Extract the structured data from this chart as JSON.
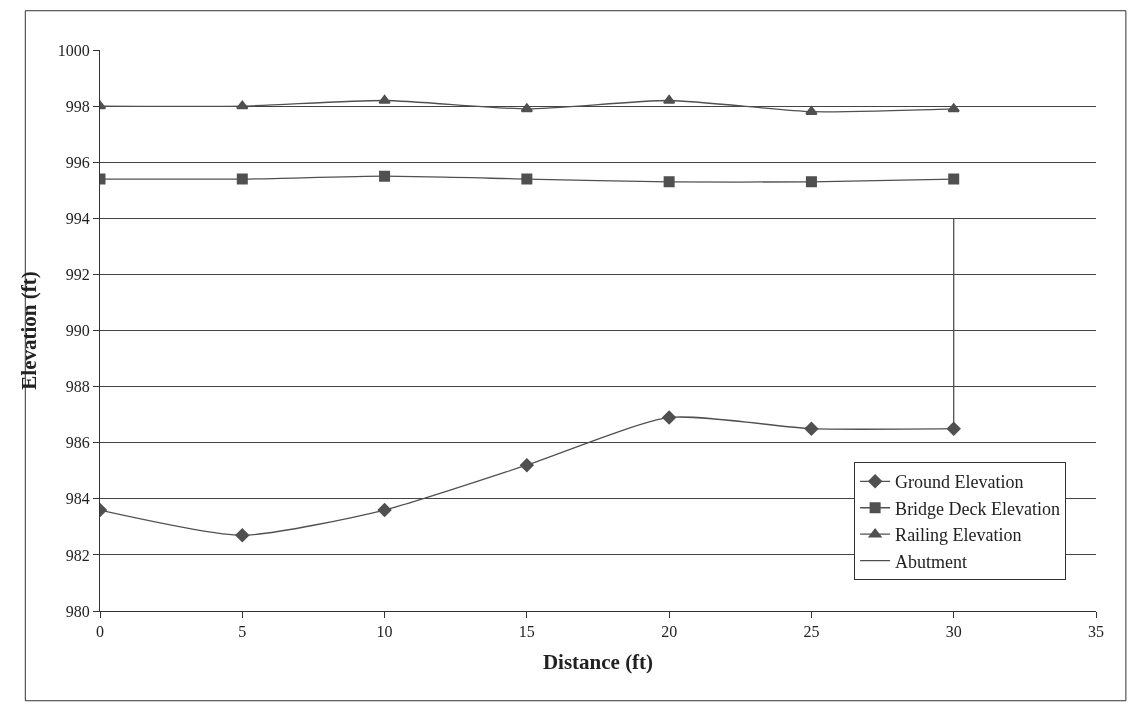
{
  "chart_data": {
    "type": "line",
    "xlabel": "Distance (ft)",
    "ylabel": "Elevation (ft)",
    "xlim": [
      0,
      35
    ],
    "xticks": [
      0,
      5,
      10,
      15,
      20,
      25,
      30,
      35
    ],
    "ylim": [
      980,
      1000
    ],
    "yticks": [
      980,
      982,
      984,
      986,
      988,
      990,
      992,
      994,
      996,
      998,
      1000
    ],
    "grid": "y",
    "legend": "bottom right",
    "series": [
      {
        "name": "Ground Elevation",
        "color": "#505050",
        "marker": "diamond",
        "x": [
          0,
          5,
          10,
          15,
          20,
          25,
          30
        ],
        "values": [
          983.6,
          982.7,
          983.6,
          985.2,
          986.9,
          986.5,
          986.5
        ]
      },
      {
        "name": "Bridge Deck Elevation",
        "color": "#505050",
        "marker": "square",
        "x": [
          0,
          5,
          10,
          15,
          20,
          25,
          30
        ],
        "values": [
          995.4,
          995.4,
          995.5,
          995.4,
          995.3,
          995.3,
          995.4
        ]
      },
      {
        "name": "Railing Elevation",
        "color": "#505050",
        "marker": "triangle",
        "x": [
          0,
          5,
          10,
          15,
          20,
          25,
          30
        ],
        "values": [
          998.0,
          998.0,
          998.2,
          997.9,
          998.2,
          997.8,
          997.9
        ]
      },
      {
        "name": "Abutment",
        "color": "#505050",
        "x": [
          30,
          30,
          30,
          30,
          30
        ],
        "values": [
          986.5,
          988,
          990,
          992,
          994
        ]
      }
    ]
  }
}
